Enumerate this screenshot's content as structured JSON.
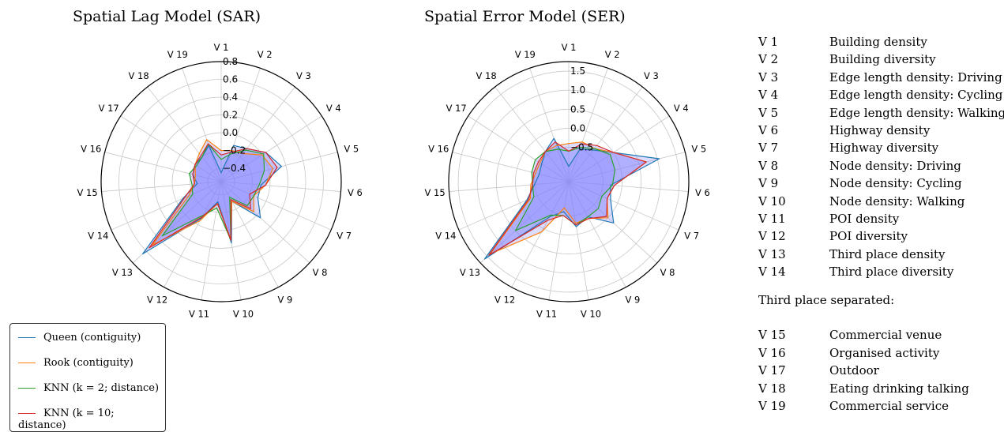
{
  "legend": {
    "items": [
      {
        "label": "Queen (contiguity)",
        "color": "#1f77b4"
      },
      {
        "label": "Rook (contiguity)",
        "color": "#ff7f0e"
      },
      {
        "label": "KNN (k = 2; distance)",
        "color": "#2ca02c"
      },
      {
        "label": "KNN (k = 10; distance)",
        "color": "#d62728"
      }
    ]
  },
  "variables": {
    "group1": [
      {
        "code": "V 1",
        "label": "Building density"
      },
      {
        "code": "V 2",
        "label": "Building diversity"
      },
      {
        "code": "V 3",
        "label": "Edge length density: Driving"
      },
      {
        "code": "V 4",
        "label": "Edge length density: Cycling"
      },
      {
        "code": "V 5",
        "label": "Edge length density: Walking"
      },
      {
        "code": "V 6",
        "label": "Highway density"
      },
      {
        "code": "V 7",
        "label": "Highway diversity"
      },
      {
        "code": "V 8",
        "label": "Node density: Driving"
      },
      {
        "code": "V 9",
        "label": "Node density: Cycling"
      },
      {
        "code": "V 10",
        "label": "Node density: Walking"
      },
      {
        "code": "V 11",
        "label": "POI density"
      },
      {
        "code": "V 12",
        "label": "POI diversity"
      },
      {
        "code": "V 13",
        "label": "Third place density"
      },
      {
        "code": "V 14",
        "label": "Third place diversity"
      }
    ],
    "separator_label": "Third place separated:",
    "group2": [
      {
        "code": "V 15",
        "label": "Commercial venue"
      },
      {
        "code": "V 16",
        "label": "Organised activity"
      },
      {
        "code": "V 17",
        "label": "Outdoor"
      },
      {
        "code": "V 18",
        "label": "Eating drinking talking"
      },
      {
        "code": "V 19",
        "label": "Commercial service"
      }
    ]
  },
  "chart_data": [
    {
      "type": "radar",
      "title": "Spatial Lag Model (SAR)",
      "categories": [
        "V 1",
        "V 2",
        "V 3",
        "V 4",
        "V 5",
        "V 6",
        "V 7",
        "V 8",
        "V 9",
        "V 10",
        "V 11",
        "V 12",
        "V 13",
        "V 14",
        "V 15",
        "V 16",
        "V 17",
        "V 18",
        "V 19"
      ],
      "rlim": [
        -0.55,
        0.8
      ],
      "ticks": [
        -0.4,
        -0.2,
        0.0,
        0.2,
        0.4,
        0.6,
        0.8
      ],
      "tick_labels": [
        "−0.4",
        "−0.2",
        "0.0",
        "0.2",
        "0.4",
        "0.6",
        "0.8"
      ],
      "fill_color": "#8080ff",
      "series": [
        {
          "name": "Queen (contiguity)",
          "color": "#1f77b4",
          "values": [
            -0.45,
            -0.12,
            -0.08,
            0.05,
            0.15,
            -0.1,
            -0.1,
            0.05,
            -0.3,
            0.15,
            -0.32,
            -0.08,
            0.65,
            -0.08,
            -0.28,
            -0.22,
            -0.2,
            -0.2,
            -0.12
          ]
        },
        {
          "name": "Rook (contiguity)",
          "color": "#ff7f0e",
          "values": [
            -0.2,
            -0.18,
            -0.15,
            0.0,
            0.05,
            -0.05,
            -0.15,
            -0.05,
            -0.3,
            0.1,
            -0.3,
            -0.05,
            0.5,
            -0.15,
            -0.25,
            -0.25,
            -0.2,
            -0.15,
            -0.05
          ]
        },
        {
          "name": "KNN (k = 2; distance)",
          "color": "#2ca02c",
          "values": [
            -0.3,
            -0.22,
            -0.1,
            0.02,
            -0.05,
            -0.12,
            -0.15,
            -0.15,
            -0.35,
            0.12,
            -0.25,
            -0.12,
            0.35,
            -0.2,
            -0.22,
            -0.18,
            -0.22,
            -0.2,
            -0.1
          ]
        },
        {
          "name": "KNN (k = 10; distance)",
          "color": "#d62728",
          "values": [
            -0.25,
            -0.2,
            -0.08,
            0.05,
            0.1,
            -0.05,
            -0.2,
            -0.1,
            -0.32,
            0.12,
            -0.3,
            -0.1,
            0.55,
            -0.1,
            -0.25,
            -0.22,
            -0.2,
            -0.18,
            -0.1
          ]
        }
      ]
    },
    {
      "type": "radar",
      "title": "Spatial Error Model (SER)",
      "categories": [
        "V 1",
        "V 2",
        "V 3",
        "V 4",
        "V 5",
        "V 6",
        "V 7",
        "V 8",
        "V 9",
        "V 10",
        "V 11",
        "V 12",
        "V 13",
        "V 14",
        "V 15",
        "V 16",
        "V 17",
        "V 18",
        "V 19"
      ],
      "rlim": [
        -1.4,
        1.75
      ],
      "ticks": [
        -0.5,
        0.0,
        0.5,
        1.0,
        1.5
      ],
      "tick_labels": [
        "−0.5",
        "0.0",
        "0.5",
        "1.0",
        "1.5"
      ],
      "fill_color": "#8080ff",
      "series": [
        {
          "name": "Queen (contiguity)",
          "color": "#1f77b4",
          "values": [
            -1.0,
            -0.5,
            -0.35,
            0.0,
            1.05,
            -0.3,
            -0.2,
            0.2,
            -0.35,
            -0.2,
            -0.6,
            -0.35,
            1.6,
            -0.2,
            -0.5,
            -0.6,
            -0.55,
            -0.4,
            -0.2
          ]
        },
        {
          "name": "Rook (contiguity)",
          "color": "#ff7f0e",
          "values": [
            -0.4,
            -0.3,
            -0.3,
            0.0,
            0.7,
            -0.2,
            -0.3,
            0.0,
            -0.3,
            -0.3,
            -0.7,
            0.1,
            1.4,
            -0.3,
            -0.4,
            -0.5,
            -0.5,
            -0.4,
            -0.4
          ]
        },
        {
          "name": "KNN (k = 2; distance)",
          "color": "#2ca02c",
          "values": [
            -0.6,
            -0.45,
            -0.3,
            -0.1,
            -0.15,
            -0.25,
            -0.45,
            -0.35,
            -0.35,
            -0.25,
            -0.5,
            -0.4,
            0.5,
            -0.4,
            -0.45,
            -0.4,
            -0.35,
            -0.4,
            -0.5
          ]
        },
        {
          "name": "KNN (k = 10; distance)",
          "color": "#d62728",
          "values": [
            -0.6,
            -0.35,
            -0.2,
            0.0,
            0.7,
            -0.2,
            -0.3,
            -0.05,
            -0.3,
            -0.25,
            -0.5,
            -0.25,
            1.45,
            -0.25,
            -0.45,
            -0.45,
            -0.45,
            -0.4,
            -0.3
          ]
        }
      ]
    }
  ]
}
